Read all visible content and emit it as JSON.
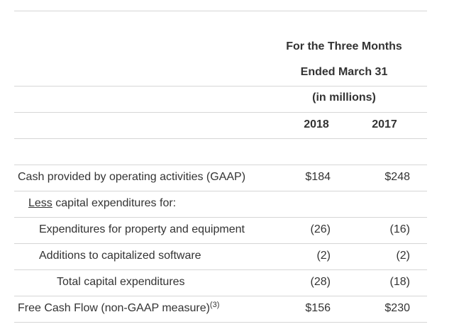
{
  "header": {
    "line1": "For the Three Months",
    "line2": "Ended March 31",
    "line3": "(in millions)",
    "year1": "2018",
    "year2": "2017"
  },
  "rows": [
    {
      "label": "Cash provided by operating activities (GAAP)",
      "v2018": "$184",
      "v2017": "$248"
    },
    {
      "label_prefix": "Less",
      "label": " capital expenditures for:",
      "v2018": "",
      "v2017": ""
    },
    {
      "label": "Expenditures for property and equipment",
      "v2018": "(26)",
      "v2017": "(16)"
    },
    {
      "label": "Additions to capitalized software",
      "v2018": "(2)",
      "v2017": "(2)"
    },
    {
      "label": "Total capital expenditures",
      "v2018": "(28)",
      "v2017": "(18)"
    },
    {
      "label": "Free Cash Flow (non-GAAP measure)",
      "footnote": "(3)",
      "v2018": "$156",
      "v2017": "$230"
    }
  ]
}
